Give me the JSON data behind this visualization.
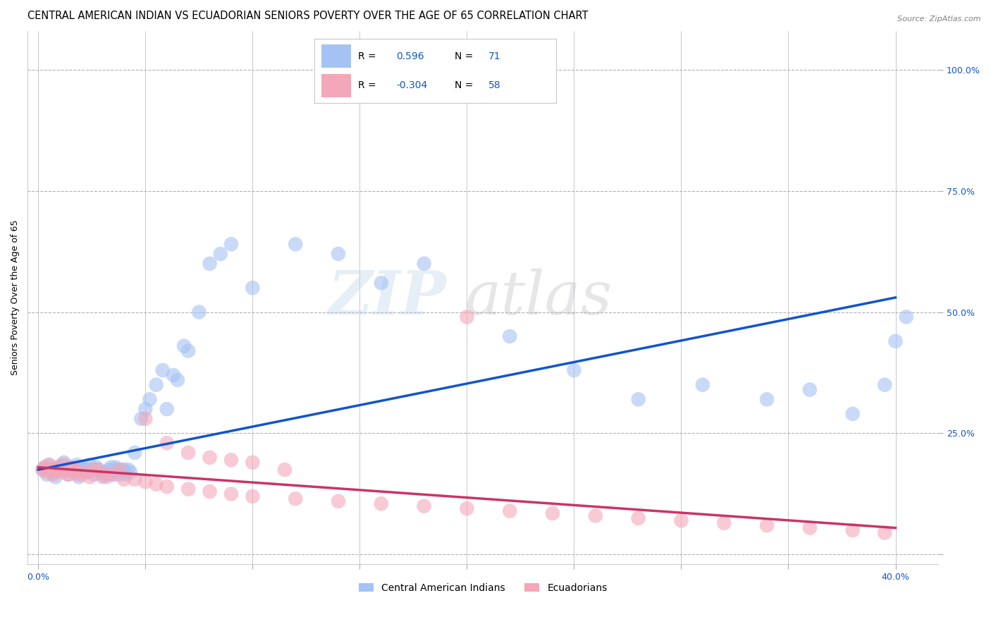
{
  "title": "CENTRAL AMERICAN INDIAN VS ECUADORIAN SENIORS POVERTY OVER THE AGE OF 65 CORRELATION CHART",
  "source": "Source: ZipAtlas.com",
  "ylabel": "Seniors Poverty Over the Age of 65",
  "xlim": [
    -0.005,
    0.42
  ],
  "ylim": [
    -0.02,
    1.08
  ],
  "xticks": [
    0.0,
    0.05,
    0.1,
    0.15,
    0.2,
    0.25,
    0.3,
    0.35,
    0.4
  ],
  "yticks": [
    0.0,
    0.25,
    0.5,
    0.75,
    1.0
  ],
  "blue_color": "#a4c2f4",
  "pink_color": "#f4a7b9",
  "blue_line_color": "#1155cc",
  "pink_line_color": "#cc3366",
  "grid_color": "#b0b0c0",
  "background_color": "#ffffff",
  "title_fontsize": 10.5,
  "axis_label_fontsize": 9,
  "tick_fontsize": 9,
  "blue_scatter_x": [
    0.002,
    0.003,
    0.004,
    0.005,
    0.006,
    0.007,
    0.008,
    0.009,
    0.01,
    0.011,
    0.012,
    0.013,
    0.014,
    0.015,
    0.016,
    0.017,
    0.018,
    0.019,
    0.02,
    0.021,
    0.022,
    0.023,
    0.024,
    0.025,
    0.026,
    0.027,
    0.028,
    0.03,
    0.031,
    0.032,
    0.033,
    0.034,
    0.035,
    0.036,
    0.037,
    0.038,
    0.039,
    0.04,
    0.041,
    0.042,
    0.043,
    0.045,
    0.048,
    0.05,
    0.052,
    0.055,
    0.058,
    0.06,
    0.063,
    0.065,
    0.068,
    0.07,
    0.075,
    0.08,
    0.085,
    0.09,
    0.1,
    0.12,
    0.14,
    0.16,
    0.18,
    0.22,
    0.25,
    0.28,
    0.31,
    0.34,
    0.36,
    0.38,
    0.395,
    0.4,
    0.405
  ],
  "blue_scatter_y": [
    0.175,
    0.18,
    0.165,
    0.185,
    0.175,
    0.17,
    0.16,
    0.175,
    0.18,
    0.185,
    0.19,
    0.175,
    0.165,
    0.18,
    0.175,
    0.17,
    0.185,
    0.16,
    0.175,
    0.18,
    0.175,
    0.17,
    0.185,
    0.175,
    0.165,
    0.18,
    0.175,
    0.165,
    0.17,
    0.16,
    0.175,
    0.18,
    0.165,
    0.18,
    0.175,
    0.165,
    0.175,
    0.175,
    0.165,
    0.175,
    0.17,
    0.21,
    0.28,
    0.3,
    0.32,
    0.35,
    0.38,
    0.3,
    0.37,
    0.36,
    0.43,
    0.42,
    0.5,
    0.6,
    0.62,
    0.64,
    0.55,
    0.64,
    0.62,
    0.56,
    0.6,
    0.45,
    0.38,
    0.32,
    0.35,
    0.32,
    0.34,
    0.29,
    0.35,
    0.44,
    0.49
  ],
  "pink_scatter_x": [
    0.002,
    0.003,
    0.004,
    0.005,
    0.006,
    0.007,
    0.008,
    0.009,
    0.01,
    0.011,
    0.012,
    0.013,
    0.014,
    0.015,
    0.016,
    0.017,
    0.018,
    0.02,
    0.022,
    0.024,
    0.026,
    0.028,
    0.03,
    0.032,
    0.035,
    0.038,
    0.04,
    0.045,
    0.05,
    0.055,
    0.06,
    0.07,
    0.08,
    0.09,
    0.1,
    0.12,
    0.14,
    0.16,
    0.18,
    0.2,
    0.22,
    0.24,
    0.26,
    0.28,
    0.3,
    0.32,
    0.34,
    0.36,
    0.38,
    0.395,
    0.05,
    0.06,
    0.07,
    0.08,
    0.09,
    0.1,
    0.115,
    0.2
  ],
  "pink_scatter_y": [
    0.175,
    0.18,
    0.17,
    0.185,
    0.175,
    0.165,
    0.175,
    0.18,
    0.175,
    0.17,
    0.185,
    0.175,
    0.165,
    0.18,
    0.175,
    0.175,
    0.165,
    0.165,
    0.17,
    0.16,
    0.175,
    0.175,
    0.16,
    0.165,
    0.165,
    0.175,
    0.155,
    0.155,
    0.15,
    0.145,
    0.14,
    0.135,
    0.13,
    0.125,
    0.12,
    0.115,
    0.11,
    0.105,
    0.1,
    0.095,
    0.09,
    0.085,
    0.08,
    0.075,
    0.07,
    0.065,
    0.06,
    0.055,
    0.05,
    0.045,
    0.28,
    0.23,
    0.21,
    0.2,
    0.195,
    0.19,
    0.175,
    0.49
  ],
  "blue_line_x": [
    0.0,
    0.4
  ],
  "blue_line_y": [
    0.175,
    0.53
  ],
  "pink_line_x": [
    0.0,
    0.4
  ],
  "pink_line_y": [
    0.18,
    0.055
  ]
}
